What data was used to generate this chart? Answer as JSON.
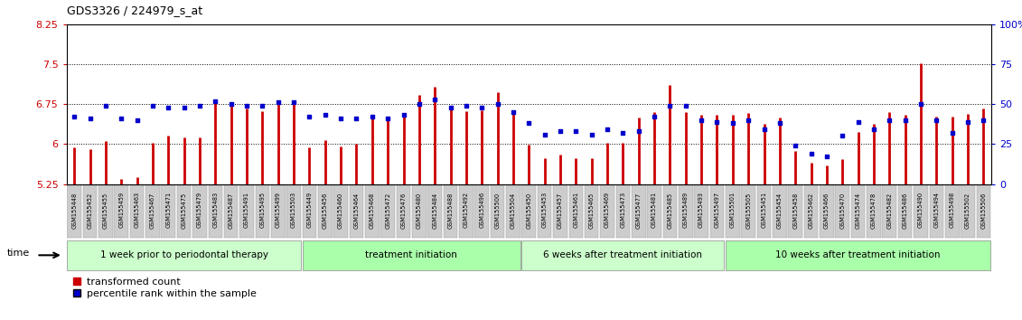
{
  "title": "GDS3326 / 224979_s_at",
  "ylim_left": [
    5.25,
    8.25
  ],
  "ylim_right": [
    0,
    100
  ],
  "yticks_left": [
    5.25,
    6.0,
    6.75,
    7.5,
    8.25
  ],
  "ytick_labels_left": [
    "5.25",
    "6",
    "6.75",
    "7.5",
    "8.25"
  ],
  "yticks_right": [
    0,
    25,
    50,
    75,
    100
  ],
  "ytick_labels_right": [
    "0",
    "25",
    "50",
    "75",
    "100%"
  ],
  "bar_color": "#cc0000",
  "dot_color": "#0000cc",
  "bar_baseline": 5.25,
  "samples": [
    "GSM155448",
    "GSM155452",
    "GSM155455",
    "GSM155459",
    "GSM155463",
    "GSM155467",
    "GSM155471",
    "GSM155475",
    "GSM155479",
    "GSM155483",
    "GSM155487",
    "GSM155491",
    "GSM155495",
    "GSM155499",
    "GSM155503",
    "GSM155449",
    "GSM155456",
    "GSM155460",
    "GSM155464",
    "GSM155468",
    "GSM155472",
    "GSM155476",
    "GSM155480",
    "GSM155484",
    "GSM155488",
    "GSM155492",
    "GSM155496",
    "GSM155500",
    "GSM155504",
    "GSM155450",
    "GSM155453",
    "GSM155457",
    "GSM155461",
    "GSM155465",
    "GSM155469",
    "GSM155473",
    "GSM155477",
    "GSM155481",
    "GSM155485",
    "GSM155489",
    "GSM155493",
    "GSM155497",
    "GSM155501",
    "GSM155505",
    "GSM155451",
    "GSM155454",
    "GSM155458",
    "GSM155462",
    "GSM155466",
    "GSM155470",
    "GSM155474",
    "GSM155478",
    "GSM155482",
    "GSM155486",
    "GSM155490",
    "GSM155494",
    "GSM155498",
    "GSM155502",
    "GSM155506"
  ],
  "bar_values": [
    5.93,
    5.91,
    6.05,
    5.35,
    5.37,
    6.03,
    6.16,
    6.12,
    6.12,
    6.83,
    6.73,
    6.67,
    6.62,
    6.82,
    6.79,
    5.94,
    6.08,
    5.96,
    6.0,
    6.55,
    6.49,
    6.52,
    6.92,
    7.08,
    6.65,
    6.62,
    6.63,
    6.97,
    6.6,
    5.98,
    5.73,
    5.8,
    5.73,
    5.73,
    6.03,
    6.03,
    6.5,
    6.6,
    7.1,
    6.6,
    6.55,
    6.55,
    6.55,
    6.58,
    6.38,
    6.5,
    5.87,
    5.65,
    5.6,
    5.72,
    6.22,
    6.37,
    6.59,
    6.55,
    7.52,
    6.52,
    6.52,
    6.56,
    6.67
  ],
  "dot_values_pct": [
    42,
    41,
    49,
    41,
    40,
    49,
    48,
    48,
    49,
    52,
    50,
    49,
    49,
    51,
    51,
    42,
    43,
    41,
    41,
    42,
    41,
    43,
    50,
    53,
    48,
    49,
    48,
    50,
    45,
    38,
    31,
    33,
    33,
    31,
    34,
    32,
    33,
    42,
    49,
    49,
    40,
    39,
    38,
    40,
    34,
    38,
    24,
    19,
    17,
    30,
    39,
    34,
    40,
    40,
    50,
    40,
    32,
    39,
    40
  ],
  "groups": [
    {
      "label": "1 week prior to periodontal therapy",
      "start": 0,
      "end": 15,
      "color": "#ccffcc"
    },
    {
      "label": "treatment initiation",
      "start": 15,
      "end": 29,
      "color": "#aaffaa"
    },
    {
      "label": "6 weeks after treatment initiation",
      "start": 29,
      "end": 42,
      "color": "#ccffcc"
    },
    {
      "label": "10 weeks after treatment initiation",
      "start": 42,
      "end": 59,
      "color": "#aaffaa"
    }
  ],
  "grid_yticks": [
    6.0,
    6.75,
    7.5
  ],
  "time_label": "time",
  "legend_bar_label": "transformed count",
  "legend_dot_label": "percentile rank within the sample",
  "tick_bg_color": "#cccccc",
  "tick_border_color": "#999999"
}
